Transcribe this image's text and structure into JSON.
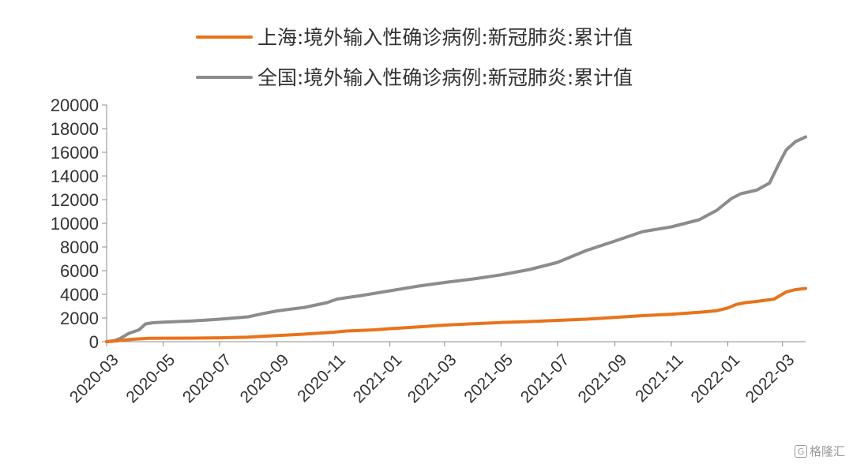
{
  "chart_data": {
    "type": "line",
    "title": "",
    "xlabel": "",
    "ylabel": "",
    "ylim": [
      0,
      20000
    ],
    "y_ticks": [
      0,
      2000,
      4000,
      6000,
      8000,
      10000,
      12000,
      14000,
      16000,
      18000,
      20000
    ],
    "x_tick_labels": [
      "2020-03",
      "2020-05",
      "2020-07",
      "2020-09",
      "2020-11",
      "2021-01",
      "2021-03",
      "2021-05",
      "2021-07",
      "2021-09",
      "2021-11",
      "2022-01",
      "2022-03"
    ],
    "xlim": [
      "2020-03-01",
      "2022-03-26"
    ],
    "grid": false,
    "legend_position": "top",
    "series": [
      {
        "name": "上海:境外输入性确诊病例:新冠肺炎:累计值",
        "color": "#E8731A",
        "points": [
          [
            "2020-03-01",
            0
          ],
          [
            "2020-03-10",
            50
          ],
          [
            "2020-03-20",
            150
          ],
          [
            "2020-04-01",
            220
          ],
          [
            "2020-04-15",
            280
          ],
          [
            "2020-05-01",
            290
          ],
          [
            "2020-06-01",
            300
          ],
          [
            "2020-07-01",
            330
          ],
          [
            "2020-08-01",
            380
          ],
          [
            "2020-08-15",
            450
          ],
          [
            "2020-09-01",
            520
          ],
          [
            "2020-10-01",
            640
          ],
          [
            "2020-11-01",
            800
          ],
          [
            "2020-11-15",
            900
          ],
          [
            "2020-12-15",
            1000
          ],
          [
            "2021-01-01",
            1100
          ],
          [
            "2021-02-01",
            1250
          ],
          [
            "2021-03-01",
            1400
          ],
          [
            "2021-04-01",
            1520
          ],
          [
            "2021-05-01",
            1620
          ],
          [
            "2021-06-01",
            1700
          ],
          [
            "2021-07-01",
            1800
          ],
          [
            "2021-08-01",
            1900
          ],
          [
            "2021-09-01",
            2050
          ],
          [
            "2021-10-01",
            2200
          ],
          [
            "2021-11-01",
            2320
          ],
          [
            "2021-12-01",
            2480
          ],
          [
            "2021-12-20",
            2620
          ],
          [
            "2022-01-01",
            2850
          ],
          [
            "2022-01-10",
            3150
          ],
          [
            "2022-01-20",
            3300
          ],
          [
            "2022-02-01",
            3400
          ],
          [
            "2022-02-20",
            3600
          ],
          [
            "2022-03-05",
            4200
          ],
          [
            "2022-03-15",
            4400
          ],
          [
            "2022-03-26",
            4500
          ]
        ]
      },
      {
        "name": "全国:境外输入性确诊病例:新冠肺炎:累计值",
        "color": "#8C8C8C",
        "points": [
          [
            "2020-03-01",
            0
          ],
          [
            "2020-03-10",
            100
          ],
          [
            "2020-03-15",
            250
          ],
          [
            "2020-03-25",
            700
          ],
          [
            "2020-04-05",
            1000
          ],
          [
            "2020-04-12",
            1500
          ],
          [
            "2020-04-20",
            1600
          ],
          [
            "2020-05-01",
            1650
          ],
          [
            "2020-06-01",
            1750
          ],
          [
            "2020-07-01",
            1900
          ],
          [
            "2020-08-01",
            2100
          ],
          [
            "2020-08-15",
            2350
          ],
          [
            "2020-09-01",
            2600
          ],
          [
            "2020-10-01",
            2900
          ],
          [
            "2020-10-25",
            3300
          ],
          [
            "2020-11-05",
            3600
          ],
          [
            "2020-12-01",
            3900
          ],
          [
            "2021-01-01",
            4300
          ],
          [
            "2021-02-01",
            4700
          ],
          [
            "2021-03-01",
            5000
          ],
          [
            "2021-04-01",
            5300
          ],
          [
            "2021-05-01",
            5650
          ],
          [
            "2021-06-01",
            6100
          ],
          [
            "2021-07-01",
            6700
          ],
          [
            "2021-08-01",
            7700
          ],
          [
            "2021-09-01",
            8500
          ],
          [
            "2021-10-01",
            9300
          ],
          [
            "2021-11-01",
            9700
          ],
          [
            "2021-12-01",
            10300
          ],
          [
            "2021-12-20",
            11100
          ],
          [
            "2022-01-05",
            12100
          ],
          [
            "2022-01-15",
            12500
          ],
          [
            "2022-02-01",
            12800
          ],
          [
            "2022-02-15",
            13400
          ],
          [
            "2022-02-25",
            15000
          ],
          [
            "2022-03-05",
            16200
          ],
          [
            "2022-03-15",
            16900
          ],
          [
            "2022-03-26",
            17300
          ]
        ]
      }
    ]
  },
  "watermark": {
    "text": "格隆汇",
    "logo_glyph": "G"
  }
}
